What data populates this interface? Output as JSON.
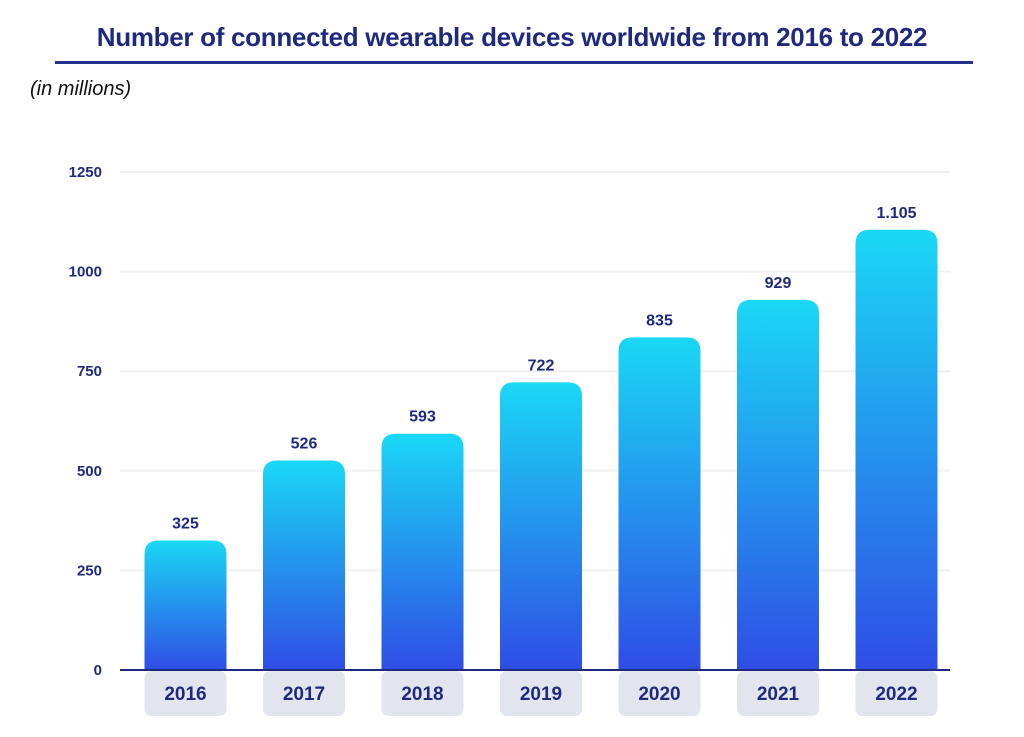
{
  "chart_data": {
    "type": "bar",
    "title": "Number of connected wearable devices worldwide from 2016 to 2022",
    "subtitle": "(in millions)",
    "categories": [
      "2016",
      "2017",
      "2018",
      "2019",
      "2020",
      "2021",
      "2022"
    ],
    "values": [
      325,
      526,
      593,
      722,
      835,
      929,
      1105
    ],
    "data_labels": [
      "325",
      "526",
      "593",
      "722",
      "835",
      "929",
      "1.105"
    ],
    "yticks": [
      0,
      250,
      500,
      750,
      1000,
      1250
    ],
    "ylim": [
      0,
      1250
    ],
    "grid": true,
    "colors": {
      "bar_top": "#1ad8f5",
      "bar_bottom": "#2f4de6",
      "text": "#1f2a7f",
      "category_box": "#e2e4ee",
      "grid": "#f0f0f3"
    }
  }
}
